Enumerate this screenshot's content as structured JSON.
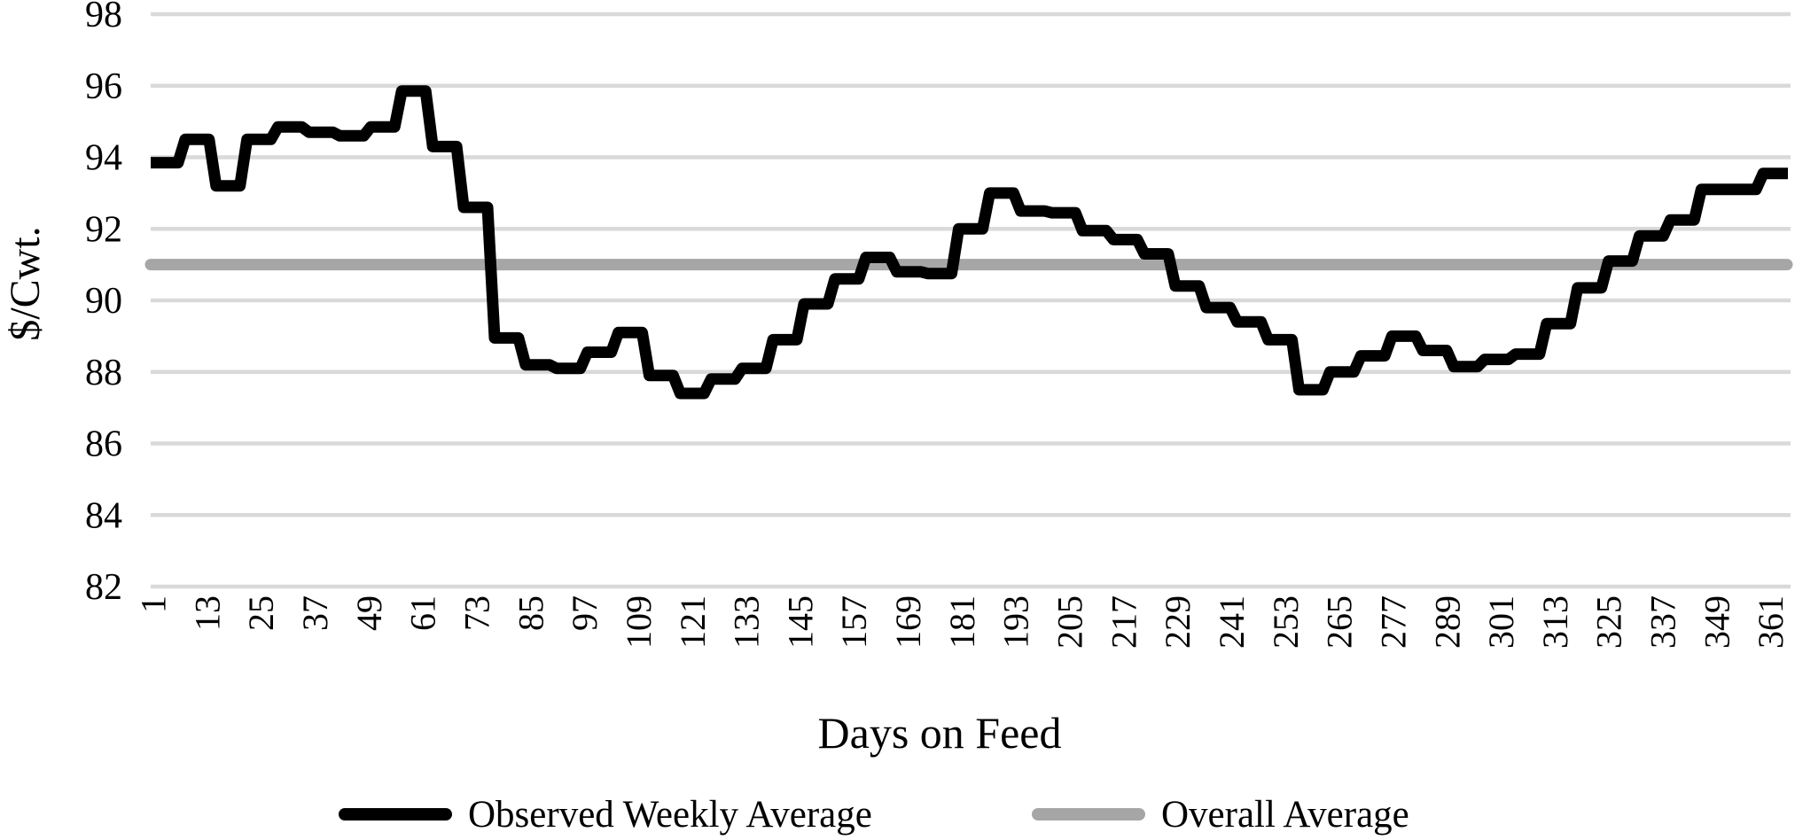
{
  "colors": {
    "background": "#ffffff",
    "gridline": "#d9d9d9",
    "series_line": "#000000",
    "average_line": "#a6a6a6",
    "text": "#000000"
  },
  "chart_data": {
    "type": "line",
    "subtype": "step",
    "title": "",
    "xlabel": "Days on Feed",
    "ylabel": "$/Cwt.",
    "x_domain": [
      1,
      365
    ],
    "ylim": [
      82,
      98
    ],
    "grid": "horizontal",
    "legend_position": "bottom",
    "y_ticks": [
      82,
      84,
      86,
      88,
      90,
      92,
      94,
      96,
      98
    ],
    "x_ticks": [
      1,
      13,
      25,
      37,
      49,
      61,
      73,
      85,
      97,
      109,
      121,
      133,
      145,
      157,
      169,
      181,
      193,
      205,
      217,
      229,
      241,
      253,
      265,
      277,
      289,
      301,
      313,
      325,
      337,
      349,
      361
    ],
    "series": [
      {
        "name": "Observed Weekly Average",
        "style": "step",
        "color": "#000000",
        "line_width": 13,
        "days_per_step": 7,
        "weekly_values": [
          93.85,
          94.5,
          93.2,
          94.5,
          94.85,
          94.7,
          94.6,
          94.85,
          95.85,
          94.3,
          92.6,
          88.95,
          88.2,
          88.1,
          88.55,
          89.1,
          87.9,
          87.4,
          87.8,
          88.1,
          88.9,
          89.9,
          90.6,
          91.2,
          90.8,
          90.75,
          92.0,
          93.0,
          92.5,
          92.45,
          91.95,
          91.7,
          91.3,
          90.4,
          89.8,
          89.4,
          88.9,
          87.5,
          88.0,
          88.45,
          89.0,
          88.6,
          88.15,
          88.35,
          88.5,
          89.35,
          90.35,
          91.1,
          91.8,
          92.25,
          93.1,
          93.1,
          93.55
        ]
      },
      {
        "name": "Overall Average",
        "style": "horizontal-line",
        "color": "#a6a6a6",
        "line_width": 13,
        "value": 91.0
      }
    ]
  }
}
